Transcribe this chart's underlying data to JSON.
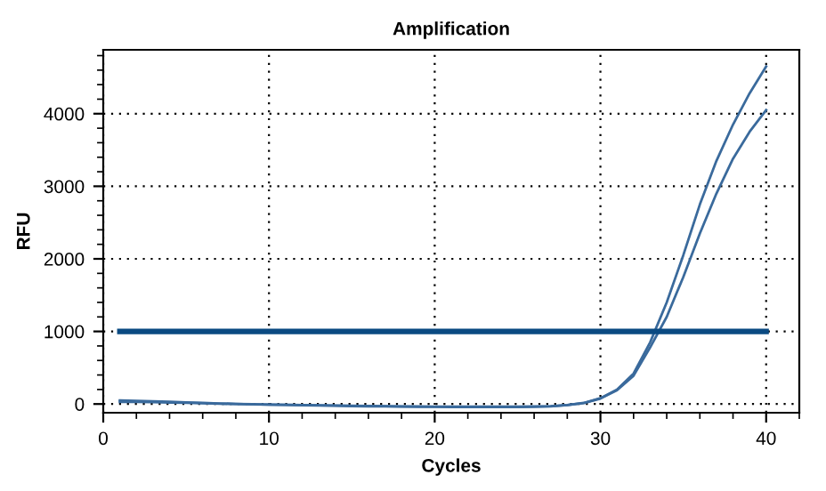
{
  "chart_data": {
    "type": "line",
    "title": "Amplification",
    "xlabel": "Cycles",
    "ylabel": "RFU",
    "x": [
      1,
      2,
      3,
      4,
      5,
      6,
      7,
      8,
      9,
      10,
      11,
      12,
      13,
      14,
      15,
      16,
      17,
      18,
      19,
      20,
      21,
      22,
      23,
      24,
      25,
      26,
      27,
      28,
      29,
      30,
      31,
      32,
      33,
      34,
      35,
      36,
      37,
      38,
      39,
      40
    ],
    "series": [
      {
        "color": "#3a6a9c",
        "values": [
          50,
          45,
          38,
          30,
          22,
          15,
          8,
          2,
          -3,
          -8,
          -12,
          -16,
          -20,
          -24,
          -28,
          -31,
          -34,
          -36,
          -38,
          -40,
          -41,
          -42,
          -42,
          -42,
          -41,
          -38,
          -32,
          -15,
          15,
          80,
          200,
          420,
          850,
          1400,
          2050,
          2750,
          3350,
          3850,
          4280,
          4650
        ]
      },
      {
        "color": "#3a6a9c",
        "values": [
          30,
          28,
          25,
          20,
          15,
          10,
          5,
          0,
          -4,
          -8,
          -12,
          -15,
          -18,
          -21,
          -24,
          -27,
          -30,
          -32,
          -34,
          -35,
          -36,
          -37,
          -37,
          -37,
          -36,
          -34,
          -29,
          -13,
          14,
          75,
          190,
          390,
          780,
          1200,
          1750,
          2350,
          2900,
          3380,
          3750,
          4050
        ]
      }
    ],
    "ref_lines": [
      {
        "axis": "y",
        "value": 1000,
        "color": "#0b4a82"
      }
    ],
    "xlim": [
      0,
      42
    ],
    "xticks": [
      0,
      10,
      20,
      30,
      40
    ],
    "ylim": [
      -120,
      4880
    ],
    "yticks": [
      0,
      1000,
      2000,
      3000,
      4000
    ],
    "grid": true,
    "line_style": "solid",
    "marker": "none"
  }
}
